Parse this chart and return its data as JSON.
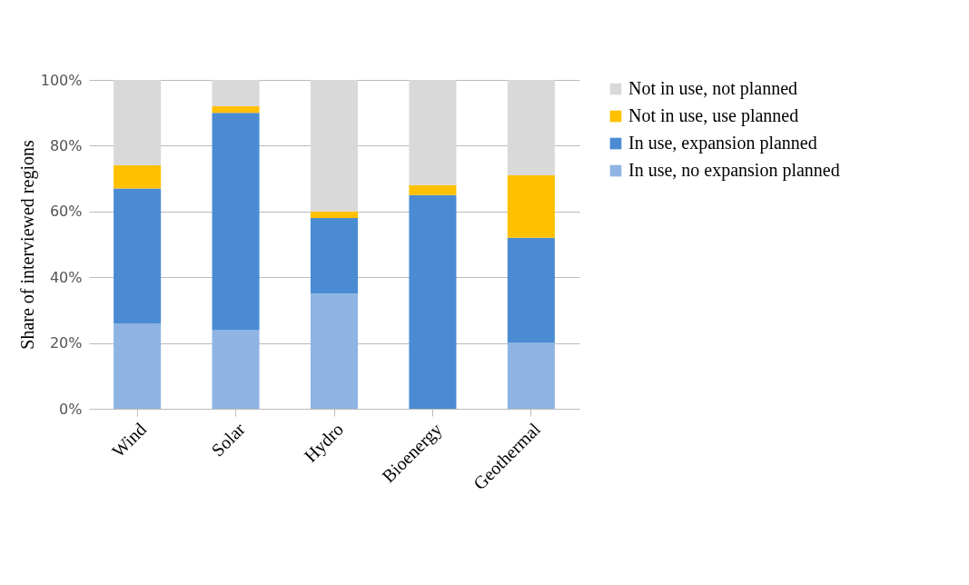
{
  "chart_data": {
    "type": "bar",
    "stacked": true,
    "ylabel": "Share of interviewed regions",
    "categories": [
      "Wind",
      "Solar",
      "Hydro",
      "Bioenergy",
      "Geothermal"
    ],
    "series": [
      {
        "name": "In use, no expansion planned",
        "color": "#8fb4e3",
        "values": [
          26,
          24,
          35,
          0,
          20
        ]
      },
      {
        "name": "In use, expansion planned",
        "color": "#4a8bd4",
        "values": [
          41,
          66,
          23,
          65,
          32
        ]
      },
      {
        "name": "Not in use, use planned",
        "color": "#ffc000",
        "values": [
          7,
          2,
          2,
          3,
          19
        ]
      },
      {
        "name": "Not in use, not planned",
        "color": "#d9d9d9",
        "values": [
          26,
          8,
          40,
          32,
          29
        ]
      }
    ],
    "ylim": [
      0,
      100
    ],
    "yticks": [
      {
        "value": 0,
        "label": "0%"
      },
      {
        "value": 20,
        "label": "20%"
      },
      {
        "value": 40,
        "label": "40%"
      },
      {
        "value": 60,
        "label": "60%"
      },
      {
        "value": 80,
        "label": "80%"
      },
      {
        "value": 100,
        "label": "100%"
      }
    ],
    "grid": "y",
    "legend": "right"
  }
}
